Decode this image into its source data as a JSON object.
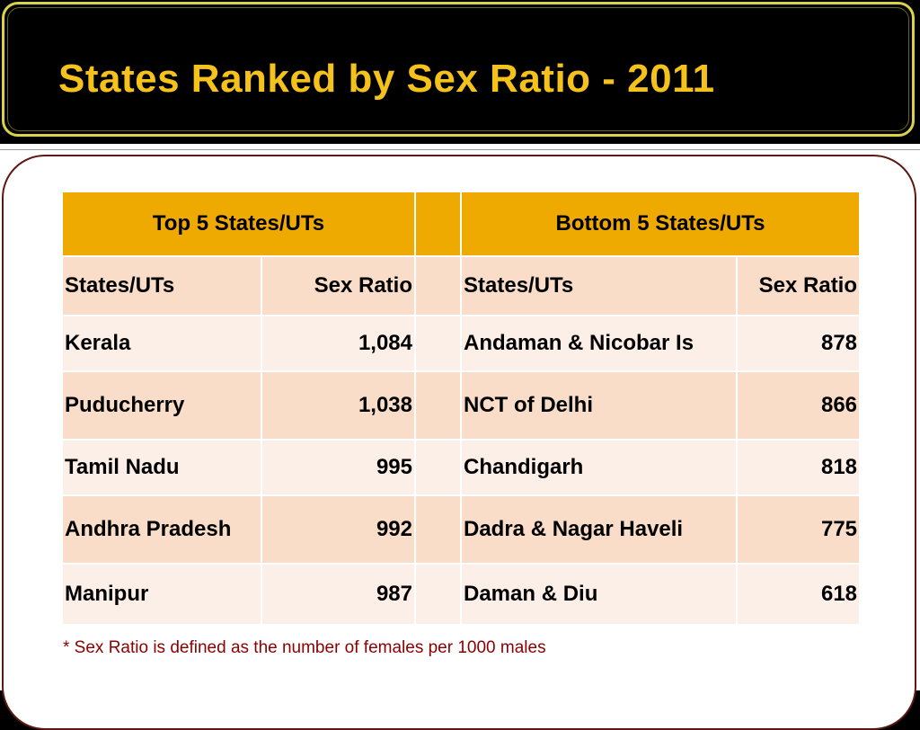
{
  "title": "States Ranked by Sex Ratio - 2011",
  "table": {
    "top_header": "Top 5 States/UTs",
    "bottom_header": "Bottom 5 States/UTs",
    "col_state": "States/UTs",
    "col_ratio": "Sex Ratio",
    "rows": [
      {
        "top_state": "Kerala",
        "top_ratio": "1,084",
        "bottom_state": "Andaman & Nicobar Is",
        "bottom_ratio": "878"
      },
      {
        "top_state": "Puducherry",
        "top_ratio": "1,038",
        "bottom_state": "NCT of Delhi",
        "bottom_ratio": "866"
      },
      {
        "top_state": "Tamil Nadu",
        "top_ratio": "995",
        "bottom_state": "Chandigarh",
        "bottom_ratio": "818"
      },
      {
        "top_state": "Andhra Pradesh",
        "top_ratio": "992",
        "bottom_state": "Dadra & Nagar Haveli",
        "bottom_ratio": "775"
      },
      {
        "top_state": "Manipur",
        "top_ratio": "987",
        "bottom_state": "Daman & Diu",
        "bottom_ratio": "618"
      }
    ]
  },
  "footnote": "* Sex Ratio is defined as the number of females per 1000 males"
}
